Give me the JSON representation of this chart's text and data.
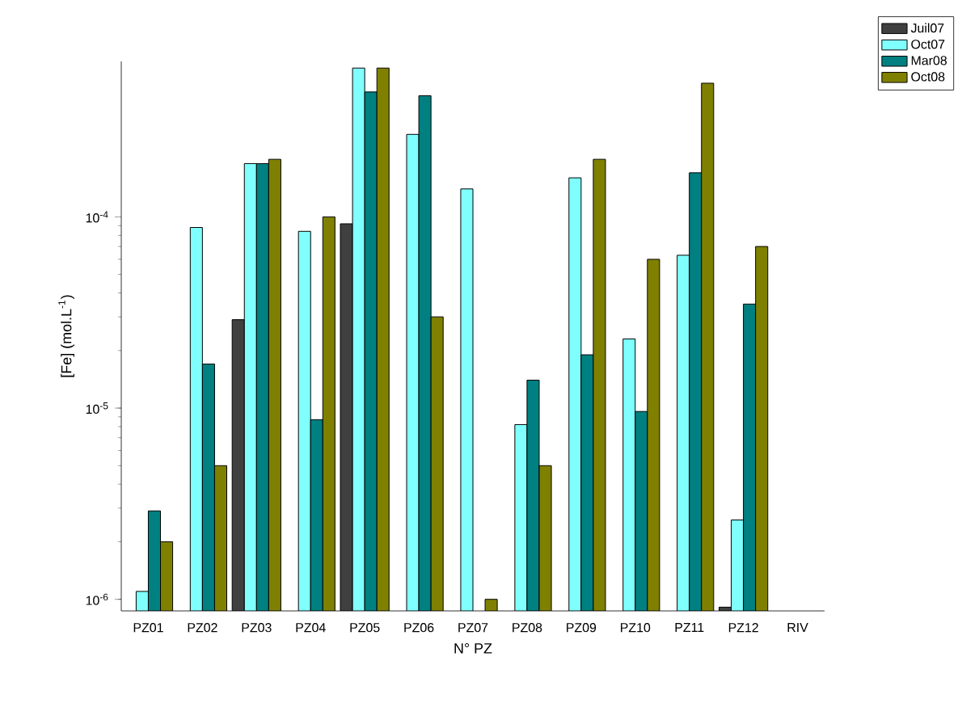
{
  "chart_data": {
    "type": "bar",
    "xlabel": "N° PZ",
    "ylabel": "[Fe] (mol.L$^{-1}$)",
    "categories": [
      "PZ01",
      "PZ02",
      "PZ03",
      "PZ04",
      "PZ05",
      "PZ06",
      "PZ07",
      "PZ08",
      "PZ09",
      "PZ10",
      "PZ11",
      "PZ12",
      "RIV"
    ],
    "series": [
      {
        "name": "Juil07",
        "color": "#404040",
        "values": [
          null,
          null,
          2.9e-05,
          null,
          9.2e-05,
          null,
          null,
          null,
          null,
          null,
          null,
          9.1e-07,
          null
        ]
      },
      {
        "name": "Oct07",
        "color": "#80ffff",
        "values": [
          1.1e-06,
          8.8e-05,
          0.00019,
          8.4e-05,
          0.0006,
          0.00027,
          0.00014,
          8.2e-06,
          0.00016,
          2.3e-05,
          6.3e-05,
          2.6e-06,
          null
        ]
      },
      {
        "name": "Mar08",
        "color": "#008080",
        "values": [
          2.9e-06,
          1.7e-05,
          0.00019,
          8.7e-06,
          0.00045,
          0.00043,
          null,
          1.4e-05,
          1.9e-05,
          9.6e-06,
          0.00017,
          3.5e-05,
          null
        ]
      },
      {
        "name": "Oct08",
        "color": "#808000",
        "values": [
          2e-06,
          5e-06,
          0.0002,
          0.0001,
          0.0006,
          3e-05,
          1e-06,
          5e-06,
          0.0002,
          6e-05,
          0.0005,
          7e-05,
          null
        ]
      }
    ],
    "log": true,
    "ylim": [
      8.7e-07,
      0.00065
    ],
    "yticks": [
      {
        "value": 1e-06,
        "label": "10$^{-6}$"
      },
      {
        "value": 1e-05,
        "label": "10$^{-5}$"
      },
      {
        "value": 0.0001,
        "label": "10$^{-4}$"
      }
    ],
    "legend": "top right"
  }
}
